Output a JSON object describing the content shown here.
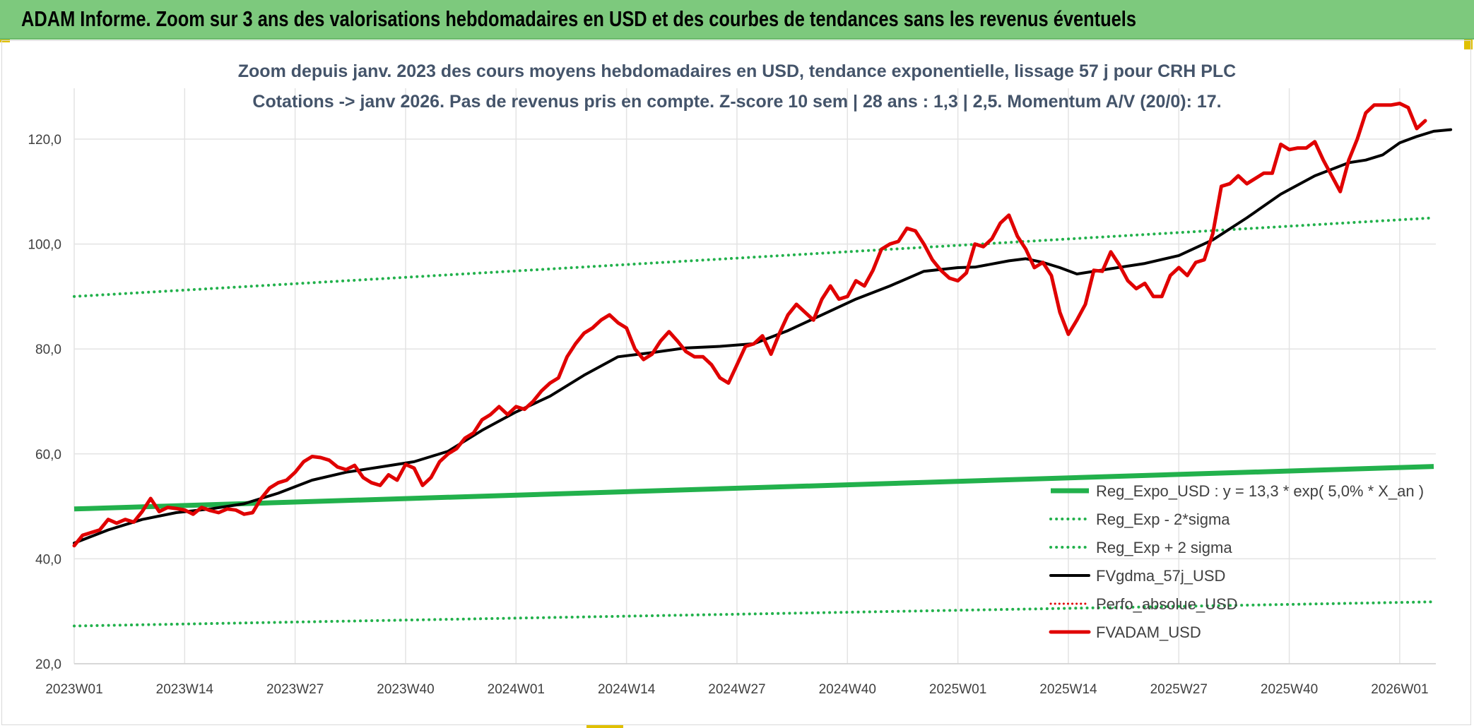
{
  "banner": {
    "title": "ADAM Informe. Zoom sur 3 ans des valorisations hebdomadaires en USD et des courbes de tendances sans les revenus éventuels"
  },
  "colors": {
    "banner": "#7dc97d",
    "regression": "#22b14c",
    "sigma": "#22b14c",
    "fvgdma": "#000000",
    "perfo": "#e00000",
    "fvadam": "#e00000",
    "grid": "#e3e3e3",
    "title": "#44546a"
  },
  "chart_data": {
    "type": "line",
    "title": [
      "Zoom depuis janv. 2023 des cours moyens hebdomadaires en USD, tendance exponentielle, lissage 57 j pour CRH PLC",
      "Cotations -> janv 2026. Pas de revenus pris en compte. Z-score 10 sem | 28 ans : 1,3 | 2,5. Momentum A/V (20/0): 17."
    ],
    "xlabel": "",
    "ylabel": "",
    "ylim": [
      20,
      130
    ],
    "yticks": [
      "20,0",
      "40,0",
      "60,0",
      "80,0",
      "100,0",
      "120,0"
    ],
    "x_range": [
      0,
      160
    ],
    "xticks": [
      {
        "label": "2023W01",
        "x": 0
      },
      {
        "label": "2023W14",
        "x": 13
      },
      {
        "label": "2023W27",
        "x": 26
      },
      {
        "label": "2023W40",
        "x": 39
      },
      {
        "label": "2024W01",
        "x": 52
      },
      {
        "label": "2024W14",
        "x": 65
      },
      {
        "label": "2024W27",
        "x": 78
      },
      {
        "label": "2024W40",
        "x": 91
      },
      {
        "label": "2025W01",
        "x": 104
      },
      {
        "label": "2025W14",
        "x": 117
      },
      {
        "label": "2025W27",
        "x": 130
      },
      {
        "label": "2025W40",
        "x": 143
      },
      {
        "label": "2026W01",
        "x": 156
      }
    ],
    "legend_position": "bottom-right",
    "series": [
      {
        "name": "Reg_Expo_USD : y = 13,3 * exp( 5,0% *  X_an )",
        "style": "solid-thick",
        "points": [
          [
            0,
            49.5
          ],
          [
            160,
            57.6
          ]
        ]
      },
      {
        "name": "Reg_Exp - 2*sigma",
        "style": "dotted",
        "points": [
          [
            0,
            27.2
          ],
          [
            160,
            31.8
          ]
        ]
      },
      {
        "name": "Reg_Exp + 2 sigma",
        "style": "dotted",
        "points": [
          [
            0,
            90.0
          ],
          [
            160,
            105.0
          ]
        ]
      },
      {
        "name": "FVgdma_57j_USD",
        "style": "solid",
        "points": [
          [
            0,
            43
          ],
          [
            4,
            45.5
          ],
          [
            8,
            47.5
          ],
          [
            12,
            48.8
          ],
          [
            16,
            49.5
          ],
          [
            20,
            50.5
          ],
          [
            24,
            52.5
          ],
          [
            28,
            55
          ],
          [
            32,
            56.5
          ],
          [
            36,
            57.5
          ],
          [
            40,
            58.5
          ],
          [
            44,
            60.5
          ],
          [
            48,
            64.5
          ],
          [
            52,
            68
          ],
          [
            56,
            71
          ],
          [
            60,
            75
          ],
          [
            64,
            78.5
          ],
          [
            68,
            79.3
          ],
          [
            72,
            80.2
          ],
          [
            76,
            80.5
          ],
          [
            80,
            81
          ],
          [
            84,
            83.5
          ],
          [
            88,
            86.5
          ],
          [
            92,
            89.5
          ],
          [
            96,
            92
          ],
          [
            100,
            94.8
          ],
          [
            104,
            95.5
          ],
          [
            106,
            95.6
          ],
          [
            110,
            96.8
          ],
          [
            112,
            97.2
          ],
          [
            114,
            96.5
          ],
          [
            116,
            95.5
          ],
          [
            118,
            94.3
          ],
          [
            122,
            95.3
          ],
          [
            126,
            96.3
          ],
          [
            130,
            97.8
          ],
          [
            134,
            100.8
          ],
          [
            138,
            105
          ],
          [
            142,
            109.5
          ],
          [
            146,
            113
          ],
          [
            150,
            115.5
          ],
          [
            152,
            116
          ],
          [
            154,
            117
          ],
          [
            156,
            119.3
          ],
          [
            158,
            120.5
          ],
          [
            160,
            121.5
          ],
          [
            162,
            121.8
          ]
        ]
      },
      {
        "name": "Perfo_absolue_USD",
        "style": "dotted-red",
        "points": []
      },
      {
        "name": "FVADAM_USD",
        "style": "solid-thick",
        "points": [
          [
            0,
            42.5
          ],
          [
            1,
            44.5
          ],
          [
            3,
            45.5
          ],
          [
            4,
            47.5
          ],
          [
            5,
            46.8
          ],
          [
            6,
            47.5
          ],
          [
            7,
            47.0
          ],
          [
            8,
            49
          ],
          [
            9,
            51.5
          ],
          [
            10,
            49
          ],
          [
            11,
            49.8
          ],
          [
            12,
            49.6
          ],
          [
            13,
            49.3
          ],
          [
            14,
            48.5
          ],
          [
            15,
            49.8
          ],
          [
            16,
            49.2
          ],
          [
            17,
            48.8
          ],
          [
            18,
            49.5
          ],
          [
            19,
            49.3
          ],
          [
            20,
            48.5
          ],
          [
            21,
            48.8
          ],
          [
            22,
            51.5
          ],
          [
            23,
            53.5
          ],
          [
            24,
            54.5
          ],
          [
            25,
            55
          ],
          [
            26,
            56.5
          ],
          [
            27,
            58.5
          ],
          [
            28,
            59.5
          ],
          [
            29,
            59.3
          ],
          [
            30,
            58.8
          ],
          [
            31,
            57.5
          ],
          [
            32,
            57
          ],
          [
            33,
            57.8
          ],
          [
            34,
            55.5
          ],
          [
            35,
            54.5
          ],
          [
            36,
            54
          ],
          [
            37,
            56
          ],
          [
            38,
            55
          ],
          [
            39,
            58
          ],
          [
            40,
            57.3
          ],
          [
            41,
            54
          ],
          [
            42,
            55.5
          ],
          [
            43,
            58.5
          ],
          [
            44,
            60
          ],
          [
            45,
            61
          ],
          [
            46,
            63
          ],
          [
            47,
            64
          ],
          [
            48,
            66.5
          ],
          [
            49,
            67.5
          ],
          [
            50,
            69
          ],
          [
            51,
            67.5
          ],
          [
            52,
            69
          ],
          [
            53,
            68.5
          ],
          [
            54,
            70
          ],
          [
            55,
            72
          ],
          [
            56,
            73.5
          ],
          [
            57,
            74.5
          ],
          [
            58,
            78.5
          ],
          [
            59,
            81
          ],
          [
            60,
            83
          ],
          [
            61,
            84
          ],
          [
            62,
            85.5
          ],
          [
            63,
            86.5
          ],
          [
            64,
            85
          ],
          [
            65,
            84
          ],
          [
            66,
            80
          ],
          [
            67,
            78
          ],
          [
            68,
            79
          ],
          [
            69,
            81.5
          ],
          [
            70,
            83.3
          ],
          [
            71,
            81.5
          ],
          [
            72,
            79.5
          ],
          [
            73,
            78.5
          ],
          [
            74,
            78.5
          ],
          [
            75,
            77
          ],
          [
            76,
            74.5
          ],
          [
            77,
            73.5
          ],
          [
            78,
            77
          ],
          [
            79,
            80.5
          ],
          [
            80,
            81
          ],
          [
            81,
            82.5
          ],
          [
            82,
            79
          ],
          [
            83,
            83
          ],
          [
            84,
            86.5
          ],
          [
            85,
            88.5
          ],
          [
            86,
            87
          ],
          [
            87,
            85.5
          ],
          [
            88,
            89.5
          ],
          [
            89,
            92
          ],
          [
            90,
            89.5
          ],
          [
            91,
            90
          ],
          [
            92,
            93
          ],
          [
            93,
            92
          ],
          [
            94,
            95
          ],
          [
            95,
            99
          ],
          [
            96,
            100
          ],
          [
            97,
            100.5
          ],
          [
            98,
            103
          ],
          [
            99,
            102.5
          ],
          [
            100,
            100
          ],
          [
            101,
            97
          ],
          [
            102,
            95
          ],
          [
            103,
            93.5
          ],
          [
            104,
            93
          ],
          [
            105,
            94.5
          ],
          [
            106,
            100
          ],
          [
            107,
            99.5
          ],
          [
            108,
            101
          ],
          [
            109,
            104
          ],
          [
            110,
            105.5
          ],
          [
            111,
            101.5
          ],
          [
            112,
            99
          ],
          [
            113,
            95.5
          ],
          [
            114,
            96.5
          ],
          [
            115,
            94
          ],
          [
            116,
            87
          ],
          [
            117,
            82.8
          ],
          [
            118,
            85.5
          ],
          [
            119,
            88.5
          ],
          [
            120,
            95
          ],
          [
            121,
            94.8
          ],
          [
            122,
            98.5
          ],
          [
            123,
            96
          ],
          [
            124,
            93
          ],
          [
            125,
            91.5
          ],
          [
            126,
            92.5
          ],
          [
            127,
            90
          ],
          [
            128,
            90
          ],
          [
            129,
            94
          ],
          [
            130,
            95.5
          ],
          [
            131,
            94
          ],
          [
            132,
            96.5
          ],
          [
            133,
            97
          ],
          [
            134,
            102
          ],
          [
            135,
            111
          ],
          [
            136,
            111.5
          ],
          [
            137,
            113
          ],
          [
            138,
            111.5
          ],
          [
            139,
            112.5
          ],
          [
            140,
            113.5
          ],
          [
            141,
            113.5
          ],
          [
            142,
            119
          ],
          [
            143,
            118
          ],
          [
            144,
            118.3
          ],
          [
            145,
            118.3
          ],
          [
            146,
            119.5
          ],
          [
            147,
            116
          ],
          [
            148,
            113
          ],
          [
            149,
            110
          ],
          [
            150,
            116
          ],
          [
            151,
            120
          ],
          [
            152,
            125
          ],
          [
            153,
            126.5
          ],
          [
            154,
            126.5
          ],
          [
            155,
            126.5
          ],
          [
            156,
            126.8
          ],
          [
            157,
            126
          ],
          [
            158,
            122
          ],
          [
            159,
            123.5
          ]
        ]
      }
    ]
  }
}
